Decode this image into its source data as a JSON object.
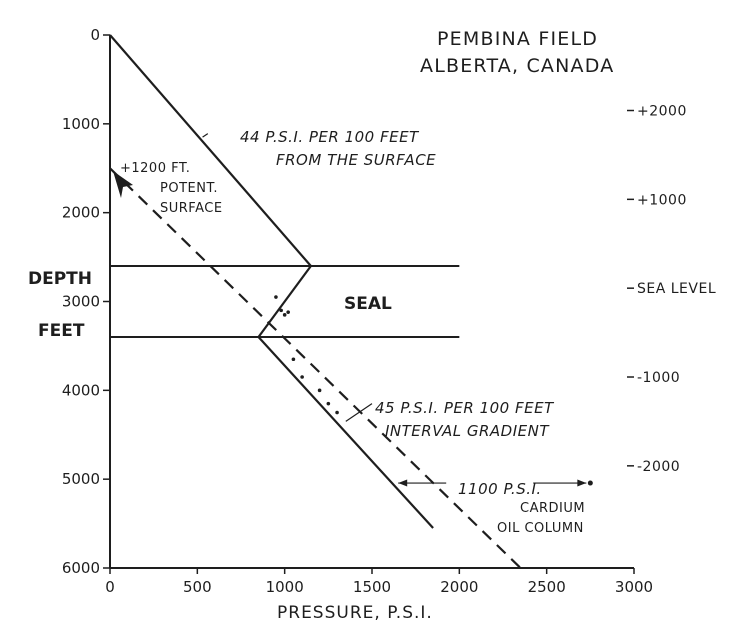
{
  "chart_data": {
    "type": "line",
    "title": "PEMBINA FIELD",
    "subtitle": "ALBERTA, CANADA",
    "xlabel": "PRESSURE, P.S.I.",
    "ylabel_top": "DEPTH",
    "ylabel_bottom": "FEET",
    "xlim": [
      0,
      3000
    ],
    "ylim": [
      0,
      6000
    ],
    "y_inverted": true,
    "grid": false,
    "x_ticks": [
      "0",
      "500",
      "1000",
      "1500",
      "2000",
      "2500",
      "3000"
    ],
    "x_tick_values": [
      0,
      500,
      1000,
      1500,
      2000,
      2500,
      3000
    ],
    "y_ticks": [
      "0",
      "1000",
      "2000",
      "3000",
      "4000",
      "5000",
      "6000"
    ],
    "y_tick_values": [
      0,
      1000,
      2000,
      3000,
      4000,
      5000,
      6000
    ],
    "elevation_ticks": [
      {
        "label": "+2000",
        "depth": 850
      },
      {
        "label": "+1000",
        "depth": 1850
      },
      {
        "label": "SEA LEVEL",
        "depth": 2850
      },
      {
        "label": "-1000",
        "depth": 3850
      },
      {
        "label": "-2000",
        "depth": 4850
      }
    ],
    "series": [
      {
        "style": "solid",
        "points": [
          [
            0,
            0
          ],
          [
            1150,
            2600
          ]
        ]
      },
      {
        "style": "dashed",
        "points": [
          [
            0,
            1500
          ],
          [
            2350,
            6000
          ]
        ]
      },
      {
        "style": "solid",
        "points": [
          [
            850,
            3400
          ],
          [
            1850,
            5550
          ]
        ]
      },
      {
        "style": "solid",
        "points": [
          [
            850,
            3400
          ],
          [
            1150,
            2600
          ]
        ]
      }
    ],
    "seal": {
      "top_depth": 2600,
      "bottom_depth": 3400,
      "x_extent": [
        0,
        2000
      ],
      "label": "SEAL"
    },
    "observations": [
      [
        950,
        2950
      ],
      [
        980,
        3100
      ],
      [
        1000,
        3150
      ],
      [
        1020,
        3120
      ],
      [
        1050,
        3650
      ],
      [
        1100,
        3850
      ],
      [
        1200,
        4000
      ],
      [
        1250,
        4150
      ],
      [
        1300,
        4250
      ]
    ],
    "oil_column": {
      "pressure_from": 1650,
      "pressure_to": 2750,
      "depth": 5100,
      "difference_label": "1100 P.S.I.",
      "label_line1": "CARDIUM",
      "label_line2": "OIL COLUMN"
    },
    "annotations": {
      "gradient_surface_line1": "44 P.S.I. PER 100 FEET",
      "gradient_surface_line2": "FROM THE SURFACE",
      "potent_line1": "+1200 FT.",
      "potent_line2": "POTENT.",
      "potent_line3": "SURFACE",
      "interval_line1": "45 P.S.I. PER 100 FEET",
      "interval_line2": "INTERVAL GRADIENT"
    }
  }
}
